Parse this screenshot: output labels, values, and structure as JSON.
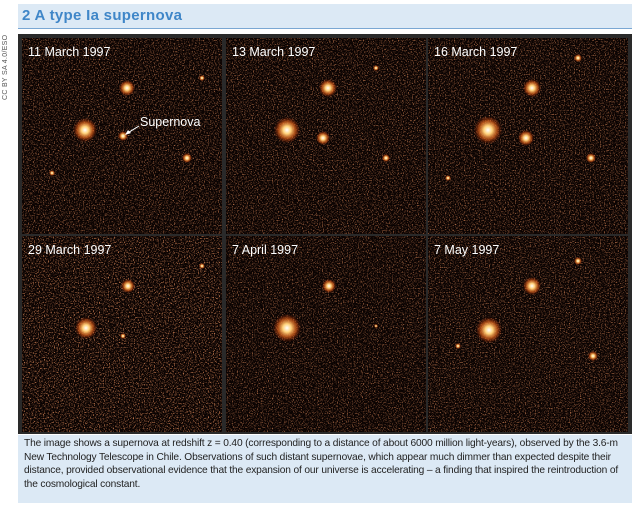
{
  "header": {
    "title": "2 A type Ia supernova"
  },
  "credit": "CC BY SA 4.0/ESO",
  "panels": [
    {
      "label": "11 March 1997"
    },
    {
      "label": "13 March 1997"
    },
    {
      "label": "16 March 1997"
    },
    {
      "label": "29 March 1997"
    },
    {
      "label": "7 April 1997"
    },
    {
      "label": "7 May 1997"
    }
  ],
  "annotation": "Supernova",
  "caption": "The image shows a supernova at redshift z = 0.40 (corresponding to a distance of about 6000 million light-years), observed by the 3.6-m New Technology Telescope in Chile. Observations of such distant supernovae, which appear much dimmer than expected despite their distance, provided observational evidence that the expansion of our universe is accelerating – a finding that inspired the reintroduction of the cosmological constant."
}
